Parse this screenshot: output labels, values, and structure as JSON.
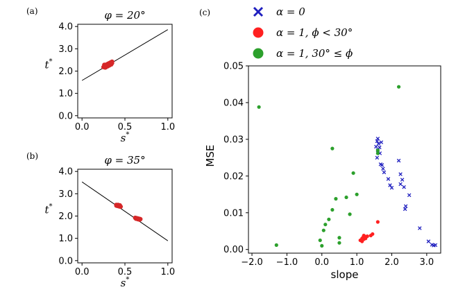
{
  "chart_data": [
    {
      "panel": "(a)",
      "type": "scatter",
      "title": "φ = 20°",
      "xlabel": "s*",
      "ylabel": "t*",
      "xlim": [
        -0.05,
        1.05
      ],
      "ylim": [
        -0.1,
        4.1
      ],
      "xticks": [
        0.0,
        0.5,
        1.0
      ],
      "xtick_labels": [
        "0.0",
        "0.5",
        "1.0"
      ],
      "yticks": [
        0.0,
        1.0,
        2.0,
        3.0,
        4.0
      ],
      "ytick_labels": [
        "0.0",
        "1.0",
        "2.0",
        "3.0",
        "4.0"
      ],
      "line": {
        "x": [
          0.0,
          1.0
        ],
        "y": [
          1.58,
          3.86
        ]
      },
      "points": {
        "color": "#d62728",
        "x": [
          0.25,
          0.26,
          0.27,
          0.27,
          0.28,
          0.28,
          0.29,
          0.29,
          0.3,
          0.3,
          0.31,
          0.31,
          0.32,
          0.32,
          0.33,
          0.33,
          0.34,
          0.34,
          0.35,
          0.35,
          0.26,
          0.28,
          0.3,
          0.32,
          0.34
        ],
        "y": [
          2.18,
          2.2,
          2.16,
          2.26,
          2.22,
          2.28,
          2.24,
          2.3,
          2.26,
          2.32,
          2.28,
          2.34,
          2.3,
          2.36,
          2.32,
          2.38,
          2.34,
          2.4,
          2.36,
          2.42,
          2.28,
          2.18,
          2.22,
          2.26,
          2.3
        ]
      }
    },
    {
      "panel": "(b)",
      "type": "scatter",
      "title": "φ = 35°",
      "xlabel": "s*",
      "ylabel": "t*",
      "xlim": [
        -0.05,
        1.05
      ],
      "ylim": [
        -0.1,
        4.1
      ],
      "xticks": [
        0.0,
        0.5,
        1.0
      ],
      "xtick_labels": [
        "0.0",
        "0.5",
        "1.0"
      ],
      "yticks": [
        0.0,
        1.0,
        2.0,
        3.0,
        4.0
      ],
      "ytick_labels": [
        "0.0",
        "1.0",
        "2.0",
        "3.0",
        "4.0"
      ],
      "line": {
        "x": [
          0.0,
          1.0
        ],
        "y": [
          3.53,
          0.89
        ]
      },
      "points": {
        "color": "#d62728",
        "x": [
          0.4,
          0.41,
          0.42,
          0.43,
          0.44,
          0.45,
          0.4,
          0.42,
          0.44,
          0.62,
          0.63,
          0.64,
          0.65,
          0.66,
          0.67,
          0.68,
          0.63,
          0.65,
          0.67
        ],
        "y": [
          2.47,
          2.46,
          2.45,
          2.44,
          2.43,
          2.42,
          2.5,
          2.5,
          2.48,
          1.92,
          1.91,
          1.9,
          1.89,
          1.88,
          1.87,
          1.86,
          1.88,
          1.86,
          1.84
        ]
      }
    },
    {
      "panel": "(c)",
      "type": "scatter",
      "title": "",
      "xlabel": "slope",
      "ylabel": "MSE",
      "xlim": [
        -2.1,
        3.4
      ],
      "ylim": [
        -0.001,
        0.05
      ],
      "xticks": [
        -2.0,
        -1.0,
        0.0,
        1.0,
        2.0,
        3.0
      ],
      "xtick_labels": [
        "−2.0",
        "−1.0",
        "0.0",
        "1.0",
        "2.0",
        "3.0"
      ],
      "yticks": [
        0.0,
        0.01,
        0.02,
        0.03,
        0.04,
        0.05
      ],
      "ytick_labels": [
        "0.00",
        "0.01",
        "0.02",
        "0.03",
        "0.04",
        "0.05"
      ],
      "legend": [
        {
          "label": "α = 0",
          "marker": "x",
          "color": "#1f1fbf"
        },
        {
          "label": "α = 1, ϕ < 30°",
          "marker": "o",
          "color": "#ff2020"
        },
        {
          "label": "α = 1, 30° ≤ ϕ",
          "marker": "o",
          "color": "#2ca02c"
        }
      ],
      "series": [
        {
          "name": "α = 0",
          "marker": "x",
          "color": "#1f1fbf",
          "x": [
            1.6,
            1.58,
            1.62,
            1.7,
            1.55,
            1.65,
            1.6,
            1.66,
            1.58,
            1.68,
            1.72,
            1.75,
            1.78,
            1.9,
            1.95,
            2.0,
            2.2,
            2.25,
            2.3,
            2.25,
            2.35,
            2.4,
            2.38,
            2.5,
            2.8,
            3.05,
            3.15,
            3.2,
            3.25
          ],
          "y": [
            0.0302,
            0.0295,
            0.0288,
            0.0292,
            0.028,
            0.0278,
            0.027,
            0.0262,
            0.025,
            0.0232,
            0.023,
            0.022,
            0.021,
            0.0192,
            0.0175,
            0.0168,
            0.0242,
            0.0205,
            0.019,
            0.0178,
            0.017,
            0.0118,
            0.011,
            0.0148,
            0.0058,
            0.0022,
            0.0013,
            0.0011,
            0.0012
          ]
        },
        {
          "name": "α = 1, ϕ < 30°",
          "marker": "o",
          "color": "#ff2020",
          "x": [
            1.1,
            1.15,
            1.2,
            1.25,
            1.15,
            1.2,
            1.25,
            1.18,
            1.3,
            1.4,
            1.45,
            1.6
          ],
          "y": [
            0.0025,
            0.003,
            0.0028,
            0.0035,
            0.0022,
            0.0038,
            0.003,
            0.0033,
            0.0036,
            0.0038,
            0.0042,
            0.0075
          ]
        },
        {
          "name": "α = 1, 30° ≤ ϕ",
          "marker": "o",
          "color": "#2ca02c",
          "x": [
            -1.8,
            -1.3,
            -0.05,
            0.0,
            0.05,
            0.1,
            0.2,
            0.3,
            0.3,
            0.4,
            0.5,
            0.5,
            0.7,
            0.8,
            0.9,
            1.0,
            1.6,
            1.6,
            2.2
          ],
          "y": [
            0.0388,
            0.0012,
            0.0025,
            0.001,
            0.0052,
            0.0068,
            0.0082,
            0.0108,
            0.0275,
            0.0138,
            0.0032,
            0.0018,
            0.0142,
            0.0096,
            0.0208,
            0.015,
            0.027,
            0.0262,
            0.0443
          ]
        }
      ]
    }
  ]
}
